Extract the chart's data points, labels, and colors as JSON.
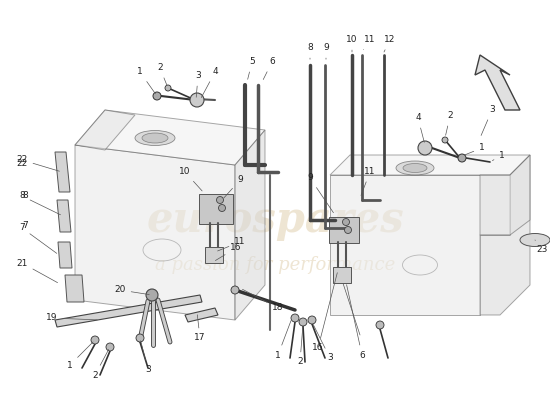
{
  "bg": "#ffffff",
  "wm1": "eurospares",
  "wm2": "a passion for performance",
  "wm_color": "#c8a96e",
  "wm_alpha": 0.3,
  "lc": "#404040",
  "lw": 0.8,
  "fs": 6.5,
  "fc": "#222222",
  "tank_fill": "#e8e8e8",
  "tank_stroke": "#606060",
  "tank_alpha": 0.55,
  "pipe_color": "#333333",
  "pad_fill": "#d4d4d4",
  "pad_stroke": "#555555"
}
